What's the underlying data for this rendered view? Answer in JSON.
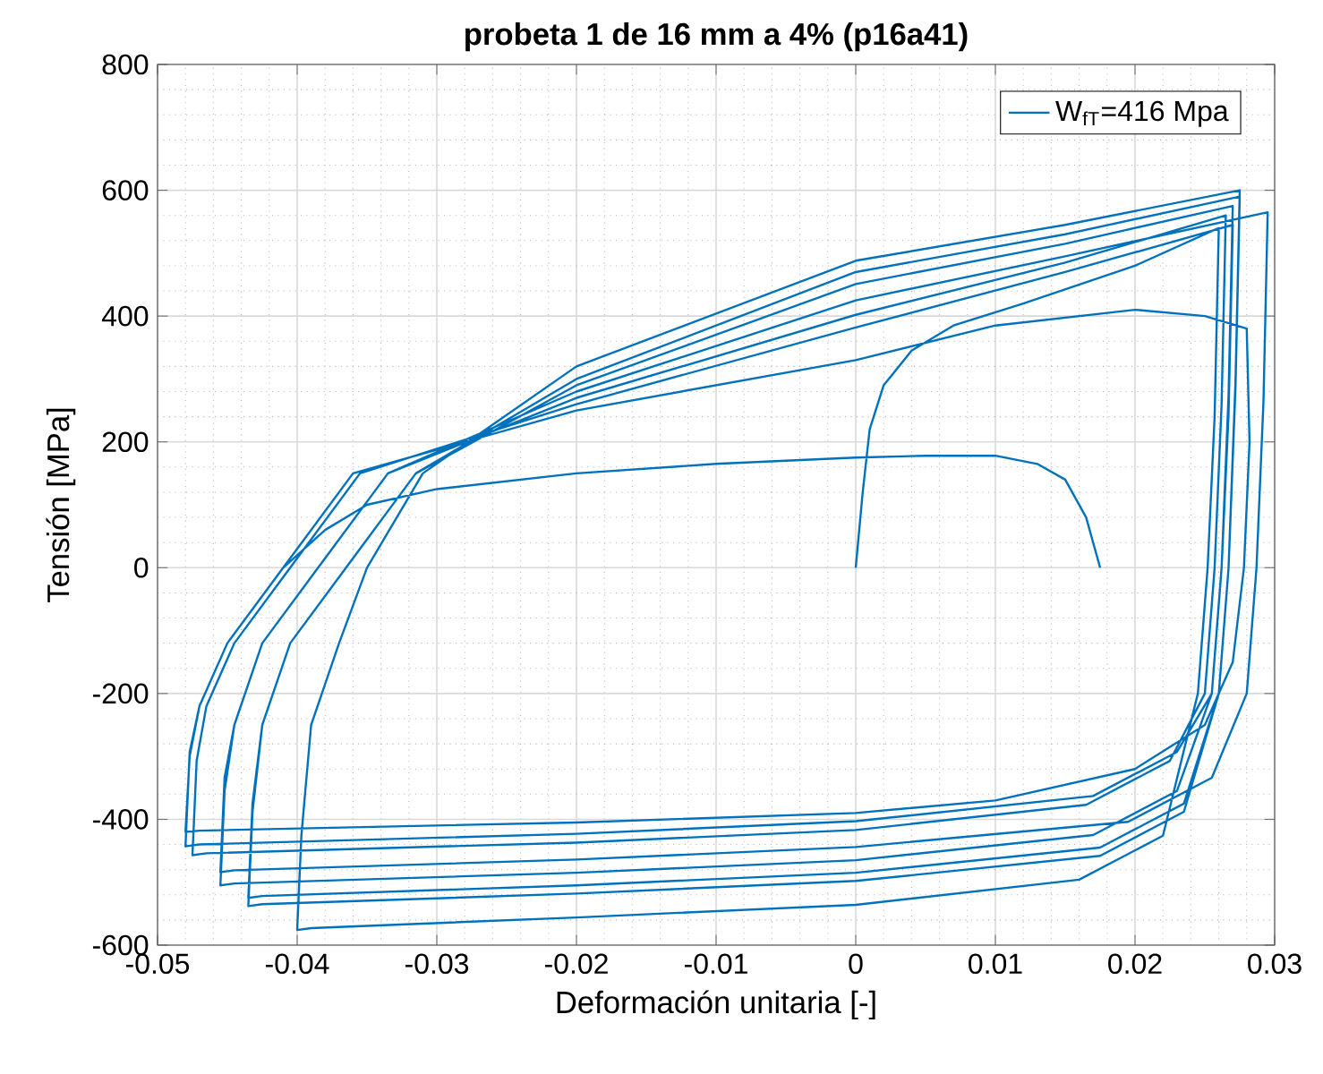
{
  "chart_data": {
    "type": "line",
    "title": "probeta 1 de 16 mm a 4% (p16a41)",
    "xlabel": "Deformación unitaria [-]",
    "ylabel": "Tensión [MPa]",
    "xlim": [
      -0.05,
      0.03
    ],
    "xticks": [
      -0.05,
      -0.04,
      -0.03,
      -0.02,
      -0.01,
      0,
      0.01,
      0.02,
      0.03
    ],
    "ylim": [
      -600,
      800
    ],
    "yticks": [
      -600,
      -400,
      -200,
      0,
      200,
      400,
      600,
      800
    ],
    "grid": true,
    "legend": "top right",
    "marker": "none",
    "line_style": "solid",
    "series": [
      {
        "name": "W$_{fT}$=416 Mpa",
        "color": "#0072bd",
        "x": [
          0,
          0.0005,
          0.001,
          0.002,
          0.004,
          0.007,
          0.012,
          0.02,
          0.026,
          0.0257,
          0.0252,
          0.0245,
          0.022,
          0.016,
          0,
          -0.02,
          -0.039,
          -0.04,
          -0.0397,
          -0.039,
          -0.037,
          -0.035,
          -0.031,
          -0.02,
          0,
          0.015,
          0.0275,
          0.0272,
          0.0267,
          0.026,
          0.0235,
          0.0175,
          0,
          -0.02,
          -0.0425,
          -0.0435,
          -0.0432,
          -0.0425,
          -0.0405,
          -0.0365,
          -0.0315,
          -0.02,
          0,
          0.015,
          0.0275,
          0.0272,
          0.0267,
          0.026,
          0.0235,
          0.0175,
          0,
          -0.02,
          -0.0425,
          -0.0435,
          -0.0432,
          -0.0425,
          -0.0405,
          -0.0365,
          -0.0315,
          -0.02,
          0,
          0.015,
          0.027,
          0.0267,
          0.0262,
          0.0255,
          0.023,
          0.017,
          0,
          -0.02,
          -0.0445,
          -0.0455,
          -0.0452,
          -0.0445,
          -0.0425,
          -0.0385,
          -0.0335,
          -0.02,
          0,
          0.015,
          0.0295,
          0.0292,
          0.0287,
          0.028,
          0.0255,
          0.0195,
          0,
          -0.02,
          -0.0445,
          -0.0455,
          -0.0452,
          -0.0445,
          -0.0425,
          -0.0385,
          -0.0335,
          -0.02,
          0,
          0.015,
          0.0265,
          0.0262,
          0.0257,
          0.025,
          0.0225,
          0.0165,
          0,
          -0.02,
          -0.0465,
          -0.0475,
          -0.0472,
          -0.0465,
          -0.0445,
          -0.0405,
          -0.0355,
          -0.02,
          0,
          0.015,
          0.027,
          0.0267,
          0.0262,
          0.0255,
          0.023,
          0.017,
          0,
          -0.02,
          -0.047,
          -0.048,
          -0.0477,
          -0.047,
          -0.045,
          -0.041,
          -0.036,
          -0.02,
          0,
          0.01,
          0.02,
          0.025,
          0.028,
          0.0282,
          0.0278,
          0.027,
          0.025,
          0.02,
          0.01,
          0,
          -0.02,
          -0.047,
          -0.048,
          -0.0477,
          -0.047,
          -0.045,
          -0.041,
          -0.038,
          -0.035,
          -0.03,
          -0.02,
          -0.01,
          0,
          0.005,
          0.01,
          0.013,
          0.015,
          0.0165,
          0.0175
        ],
        "values": [
          0,
          120,
          220,
          290,
          345,
          385,
          420,
          480,
          540,
          240,
          0,
          -200,
          -426,
          -496,
          -536,
          -556,
          -573,
          -576,
          -426,
          -250,
          -120,
          0,
          150,
          320,
          488,
          545,
          600,
          300,
          0,
          -200,
          -388,
          -458,
          -498,
          -518,
          -535,
          -538,
          -388,
          -250,
          -120,
          0,
          150,
          300,
          470,
          530,
          590,
          290,
          0,
          -200,
          -375,
          -445,
          -485,
          -505,
          -522,
          -525,
          -375,
          -250,
          -120,
          0,
          150,
          290,
          451,
          515,
          575,
          275,
          0,
          -200,
          -355,
          -425,
          -465,
          -485,
          -502,
          -505,
          -355,
          -250,
          -120,
          0,
          150,
          280,
          425,
          495,
          565,
          265,
          0,
          -200,
          -334,
          -404,
          -444,
          -464,
          -481,
          -484,
          -334,
          -250,
          -120,
          0,
          150,
          270,
          402,
          485,
          560,
          260,
          0,
          -200,
          -307,
          -377,
          -417,
          -437,
          -454,
          -457,
          -307,
          -220,
          -120,
          0,
          150,
          260,
          382,
          470,
          545,
          245,
          0,
          -200,
          -293,
          -363,
          -403,
          -423,
          -440,
          -443,
          -293,
          -220,
          -120,
          0,
          150,
          250,
          330,
          385,
          410,
          400,
          380,
          200,
          0,
          -150,
          -250,
          -320,
          -370,
          -390,
          -405,
          -418,
          -420,
          -300,
          -220,
          -120,
          0,
          60,
          100,
          125,
          150,
          165,
          175,
          178,
          178,
          165,
          140,
          80,
          0
        ]
      }
    ]
  }
}
